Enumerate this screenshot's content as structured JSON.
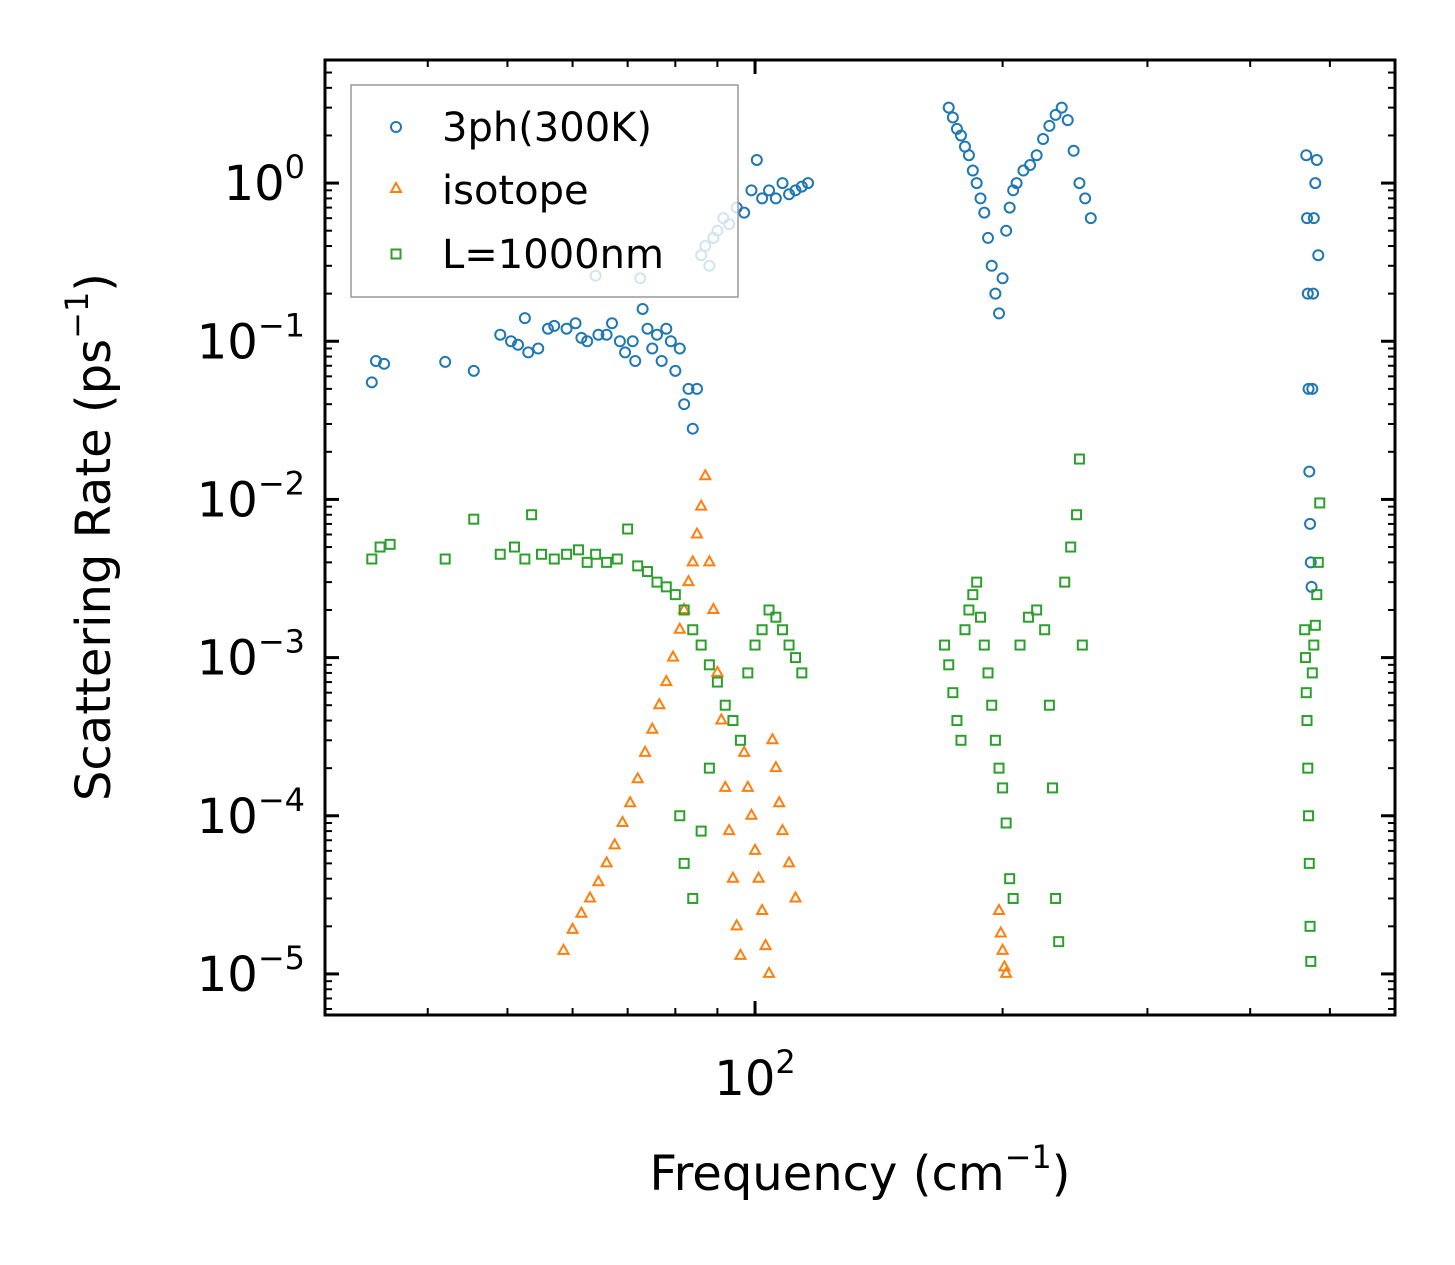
{
  "chart_data": {
    "type": "scatter",
    "xscale": "log",
    "yscale": "log",
    "xlabel": "Frequency (cm",
    "xlabel_exp": "−1",
    "xlabel_end": ")",
    "ylabel": "Scattering Rate (ps",
    "ylabel_exp": "−1",
    "ylabel_end": ")",
    "xlim": [
      30,
      600
    ],
    "ylim": [
      5.5e-06,
      6.0
    ],
    "x_major_ticks": [
      {
        "value": 100,
        "base": "10",
        "exp": "2"
      }
    ],
    "y_major_ticks": [
      {
        "value": 1,
        "base": "10",
        "exp": "0"
      },
      {
        "value": 0.1,
        "base": "10",
        "exp": "−1"
      },
      {
        "value": 0.01,
        "base": "10",
        "exp": "−2"
      },
      {
        "value": 0.001,
        "base": "10",
        "exp": "−3"
      },
      {
        "value": 0.0001,
        "base": "10",
        "exp": "−4"
      },
      {
        "value": 1e-05,
        "base": "10",
        "exp": "−5"
      }
    ],
    "legend_position": "top-left",
    "series": [
      {
        "name": "3ph(300K)",
        "marker": "circle",
        "color": "#1f77b4",
        "points": [
          [
            34.2,
            0.055
          ],
          [
            34.6,
            0.075
          ],
          [
            35.4,
            0.072
          ],
          [
            42.0,
            0.074
          ],
          [
            45.5,
            0.065
          ],
          [
            49.0,
            0.11
          ],
          [
            50.5,
            0.1
          ],
          [
            51.5,
            0.095
          ],
          [
            52.5,
            0.14
          ],
          [
            53.0,
            0.085
          ],
          [
            54.5,
            0.09
          ],
          [
            56.0,
            0.12
          ],
          [
            57.0,
            0.125
          ],
          [
            59.0,
            0.12
          ],
          [
            60.5,
            0.13
          ],
          [
            61.5,
            0.105
          ],
          [
            62.5,
            0.1
          ],
          [
            64.0,
            0.26
          ],
          [
            64.5,
            0.11
          ],
          [
            66.0,
            0.11
          ],
          [
            67.0,
            0.13
          ],
          [
            68.5,
            0.1
          ],
          [
            69.5,
            0.085
          ],
          [
            71.0,
            0.1
          ],
          [
            71.5,
            0.075
          ],
          [
            72.5,
            0.25
          ],
          [
            73.0,
            0.16
          ],
          [
            74.0,
            0.12
          ],
          [
            75.0,
            0.09
          ],
          [
            76.0,
            0.11
          ],
          [
            77.0,
            0.075
          ],
          [
            78.0,
            0.12
          ],
          [
            79.0,
            0.1
          ],
          [
            80.0,
            0.065
          ],
          [
            81.0,
            0.09
          ],
          [
            82.0,
            0.04
          ],
          [
            83.0,
            0.05
          ],
          [
            84.0,
            0.028
          ],
          [
            85.0,
            0.05
          ],
          [
            86.0,
            0.35
          ],
          [
            87.0,
            0.4
          ],
          [
            88.0,
            0.3
          ],
          [
            89.0,
            0.45
          ],
          [
            90.0,
            0.5
          ],
          [
            91.5,
            0.6
          ],
          [
            93.0,
            0.55
          ],
          [
            95.0,
            0.7
          ],
          [
            97.0,
            0.65
          ],
          [
            99.0,
            0.9
          ],
          [
            100.5,
            1.4
          ],
          [
            102.0,
            0.8
          ],
          [
            104.0,
            0.9
          ],
          [
            106.0,
            0.8
          ],
          [
            108.0,
            1.0
          ],
          [
            110.0,
            0.85
          ],
          [
            112.0,
            0.9
          ],
          [
            114.0,
            0.95
          ],
          [
            116.0,
            1.0
          ],
          [
            172.0,
            3.0
          ],
          [
            174.0,
            2.6
          ],
          [
            176.0,
            2.2
          ],
          [
            178.0,
            2.0
          ],
          [
            180.0,
            1.7
          ],
          [
            182.0,
            1.5
          ],
          [
            184.0,
            1.2
          ],
          [
            186.0,
            1.0
          ],
          [
            188.0,
            0.8
          ],
          [
            190.0,
            0.65
          ],
          [
            192.0,
            0.45
          ],
          [
            194.0,
            0.3
          ],
          [
            196.0,
            0.2
          ],
          [
            198.0,
            0.15
          ],
          [
            200.0,
            0.25
          ],
          [
            202.0,
            0.5
          ],
          [
            204.0,
            0.7
          ],
          [
            206.0,
            0.9
          ],
          [
            208.0,
            1.0
          ],
          [
            212.0,
            1.2
          ],
          [
            216.0,
            1.3
          ],
          [
            220.0,
            1.5
          ],
          [
            224.0,
            1.9
          ],
          [
            228.0,
            2.3
          ],
          [
            232.0,
            2.7
          ],
          [
            236.0,
            3.0
          ],
          [
            240.0,
            2.5
          ],
          [
            244.0,
            1.6
          ],
          [
            248.0,
            1.0
          ],
          [
            252.0,
            0.8
          ],
          [
            256.0,
            0.6
          ],
          [
            468.0,
            1.5
          ],
          [
            469.0,
            0.6
          ],
          [
            470.0,
            0.2
          ],
          [
            471.0,
            0.05
          ],
          [
            472.0,
            0.015
          ],
          [
            473.0,
            0.007
          ],
          [
            474.0,
            0.004
          ],
          [
            475.0,
            0.0028
          ],
          [
            476.0,
            0.05
          ],
          [
            477.0,
            0.2
          ],
          [
            478.0,
            0.6
          ],
          [
            480.0,
            1.0
          ],
          [
            482.0,
            1.4
          ],
          [
            484.0,
            0.35
          ]
        ]
      },
      {
        "name": "isotope",
        "marker": "triangle",
        "color": "#ff7f0e",
        "points": [
          [
            58.5,
            1.4e-05
          ],
          [
            60.0,
            1.9e-05
          ],
          [
            61.5,
            2.4e-05
          ],
          [
            63.0,
            3e-05
          ],
          [
            64.5,
            3.8e-05
          ],
          [
            66.0,
            5e-05
          ],
          [
            67.5,
            6.5e-05
          ],
          [
            69.0,
            9e-05
          ],
          [
            70.5,
            0.00012
          ],
          [
            72.0,
            0.00017
          ],
          [
            73.5,
            0.00025
          ],
          [
            75.0,
            0.00035
          ],
          [
            76.5,
            0.0005
          ],
          [
            78.0,
            0.0007
          ],
          [
            79.5,
            0.001
          ],
          [
            81.0,
            0.0015
          ],
          [
            82.0,
            0.002
          ],
          [
            83.0,
            0.003
          ],
          [
            84.0,
            0.004
          ],
          [
            85.0,
            0.006
          ],
          [
            86.0,
            0.009
          ],
          [
            87.0,
            0.014
          ],
          [
            88.0,
            0.004
          ],
          [
            89.0,
            0.002
          ],
          [
            90.0,
            0.0008
          ],
          [
            91.0,
            0.0004
          ],
          [
            92.0,
            0.00015
          ],
          [
            93.0,
            8e-05
          ],
          [
            94.0,
            4e-05
          ],
          [
            95.0,
            2e-05
          ],
          [
            96.0,
            1.3e-05
          ],
          [
            97.0,
            0.00025
          ],
          [
            98.0,
            0.00015
          ],
          [
            99.0,
            0.0001
          ],
          [
            100.0,
            6e-05
          ],
          [
            101.0,
            4e-05
          ],
          [
            102.0,
            2.5e-05
          ],
          [
            103.0,
            1.5e-05
          ],
          [
            104.0,
            1e-05
          ],
          [
            105.0,
            0.0003
          ],
          [
            106.0,
            0.0002
          ],
          [
            107.0,
            0.00012
          ],
          [
            108.0,
            8e-05
          ],
          [
            110.0,
            5e-05
          ],
          [
            112.0,
            3e-05
          ],
          [
            198.0,
            2.5e-05
          ],
          [
            199.0,
            1.8e-05
          ],
          [
            200.0,
            1.4e-05
          ],
          [
            201.0,
            1.1e-05
          ],
          [
            202.0,
            1e-05
          ]
        ]
      },
      {
        "name": "L=1000nm",
        "marker": "square",
        "color": "#2ca02c",
        "points": [
          [
            34.2,
            0.0042
          ],
          [
            35.0,
            0.005
          ],
          [
            36.0,
            0.0052
          ],
          [
            42.0,
            0.0042
          ],
          [
            45.5,
            0.0075
          ],
          [
            49.0,
            0.0045
          ],
          [
            51.0,
            0.005
          ],
          [
            52.5,
            0.0042
          ],
          [
            53.5,
            0.008
          ],
          [
            55.0,
            0.0045
          ],
          [
            57.0,
            0.0042
          ],
          [
            59.0,
            0.0045
          ],
          [
            61.0,
            0.0048
          ],
          [
            62.5,
            0.004
          ],
          [
            64.0,
            0.0045
          ],
          [
            66.0,
            0.004
          ],
          [
            68.0,
            0.0042
          ],
          [
            70.0,
            0.0065
          ],
          [
            72.0,
            0.0038
          ],
          [
            74.0,
            0.0035
          ],
          [
            76.0,
            0.003
          ],
          [
            78.0,
            0.0028
          ],
          [
            80.0,
            0.0025
          ],
          [
            82.0,
            0.002
          ],
          [
            84.0,
            0.0015
          ],
          [
            86.0,
            0.0012
          ],
          [
            88.0,
            0.0009
          ],
          [
            90.0,
            0.0007
          ],
          [
            92.0,
            0.0005
          ],
          [
            94.0,
            0.0004
          ],
          [
            96.0,
            0.0003
          ],
          [
            98.0,
            0.0008
          ],
          [
            100.0,
            0.0012
          ],
          [
            102.0,
            0.0015
          ],
          [
            104.0,
            0.002
          ],
          [
            106.0,
            0.0018
          ],
          [
            108.0,
            0.0015
          ],
          [
            110.0,
            0.0012
          ],
          [
            112.0,
            0.001
          ],
          [
            114.0,
            0.0008
          ],
          [
            81.0,
            0.0001
          ],
          [
            82.0,
            5e-05
          ],
          [
            84.0,
            3e-05
          ],
          [
            86.0,
            8e-05
          ],
          [
            88.0,
            0.0002
          ],
          [
            170.0,
            0.0012
          ],
          [
            172.0,
            0.0009
          ],
          [
            174.0,
            0.0006
          ],
          [
            176.0,
            0.0004
          ],
          [
            178.0,
            0.0003
          ],
          [
            180.0,
            0.0015
          ],
          [
            182.0,
            0.002
          ],
          [
            184.0,
            0.0025
          ],
          [
            186.0,
            0.003
          ],
          [
            188.0,
            0.0018
          ],
          [
            190.0,
            0.0012
          ],
          [
            192.0,
            0.0008
          ],
          [
            194.0,
            0.0005
          ],
          [
            196.0,
            0.0003
          ],
          [
            198.0,
            0.0002
          ],
          [
            200.0,
            0.00015
          ],
          [
            202.0,
            9e-05
          ],
          [
            204.0,
            4e-05
          ],
          [
            206.0,
            3e-05
          ],
          [
            210.0,
            0.0012
          ],
          [
            215.0,
            0.0018
          ],
          [
            220.0,
            0.002
          ],
          [
            225.0,
            0.0015
          ],
          [
            228.0,
            0.0005
          ],
          [
            230.0,
            0.00015
          ],
          [
            232.0,
            3e-05
          ],
          [
            234.0,
            1.6e-05
          ],
          [
            238.0,
            0.003
          ],
          [
            242.0,
            0.005
          ],
          [
            246.0,
            0.008
          ],
          [
            248.0,
            0.018
          ],
          [
            250.0,
            0.0012
          ],
          [
            466.0,
            0.0015
          ],
          [
            467.0,
            0.001
          ],
          [
            468.0,
            0.0006
          ],
          [
            469.0,
            0.0004
          ],
          [
            470.0,
            0.0002
          ],
          [
            471.0,
            0.0001
          ],
          [
            472.0,
            5e-05
          ],
          [
            473.0,
            2e-05
          ],
          [
            474.0,
            1.2e-05
          ],
          [
            476.0,
            0.0008
          ],
          [
            478.0,
            0.0012
          ],
          [
            480.0,
            0.0016
          ],
          [
            482.0,
            0.0025
          ],
          [
            484.0,
            0.004
          ],
          [
            486.0,
            0.0095
          ]
        ]
      }
    ]
  }
}
